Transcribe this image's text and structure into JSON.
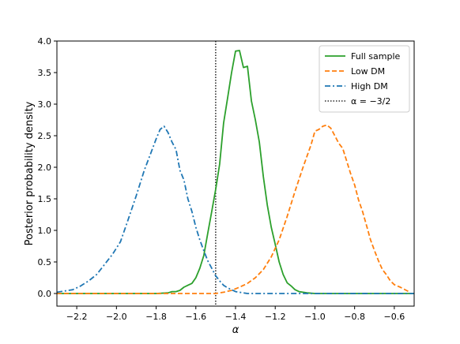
{
  "chart_data": {
    "type": "line",
    "title": "",
    "xlabel": "α",
    "ylabel": "Posterior probability density",
    "xlim": [
      -2.3,
      -0.5
    ],
    "ylim": [
      -0.2,
      4.0
    ],
    "xticks": [
      -2.2,
      -2.0,
      -1.8,
      -1.6,
      -1.4,
      -1.2,
      -1.0,
      -0.8,
      -0.6
    ],
    "xtick_labels": [
      "−2.2",
      "−2.0",
      "−1.8",
      "−1.6",
      "−1.4",
      "−1.2",
      "−1.0",
      "−0.8",
      "−0.6"
    ],
    "yticks": [
      0.0,
      0.5,
      1.0,
      1.5,
      2.0,
      2.5,
      3.0,
      3.5,
      4.0
    ],
    "ytick_labels": [
      "0.0",
      "0.5",
      "1.0",
      "1.5",
      "2.0",
      "2.5",
      "3.0",
      "3.5",
      "4.0"
    ],
    "grid": false,
    "legend_position": "top-right",
    "series": [
      {
        "name": "Full sample",
        "color": "#2ca02c",
        "style": "solid",
        "x": [
          -2.3,
          -1.8,
          -1.74,
          -1.72,
          -1.7,
          -1.68,
          -1.66,
          -1.64,
          -1.62,
          -1.6,
          -1.58,
          -1.56,
          -1.54,
          -1.52,
          -1.5,
          -1.48,
          -1.46,
          -1.44,
          -1.42,
          -1.4,
          -1.38,
          -1.36,
          -1.34,
          -1.32,
          -1.3,
          -1.28,
          -1.26,
          -1.24,
          -1.22,
          -1.2,
          -1.18,
          -1.16,
          -1.14,
          -1.12,
          -1.1,
          -1.08,
          -1.06,
          -1.04,
          -1.0,
          -0.5
        ],
        "y": [
          0.0,
          0.0,
          0.01,
          0.03,
          0.03,
          0.05,
          0.1,
          0.13,
          0.16,
          0.25,
          0.4,
          0.6,
          0.95,
          1.3,
          1.65,
          2.05,
          2.7,
          3.1,
          3.5,
          3.84,
          3.85,
          3.58,
          3.6,
          3.05,
          2.75,
          2.4,
          1.85,
          1.4,
          1.05,
          0.78,
          0.5,
          0.3,
          0.17,
          0.12,
          0.06,
          0.03,
          0.02,
          0.01,
          0.0,
          0.0
        ]
      },
      {
        "name": "Low DM",
        "color": "#ff7f0e",
        "style": "dashed",
        "x": [
          -2.3,
          -1.5,
          -1.46,
          -1.42,
          -1.38,
          -1.34,
          -1.3,
          -1.26,
          -1.22,
          -1.18,
          -1.14,
          -1.1,
          -1.06,
          -1.02,
          -1.0,
          -0.98,
          -0.96,
          -0.94,
          -0.92,
          -0.9,
          -0.88,
          -0.86,
          -0.84,
          -0.82,
          -0.8,
          -0.78,
          -0.76,
          -0.74,
          -0.72,
          -0.7,
          -0.68,
          -0.66,
          -0.64,
          -0.62,
          -0.6,
          -0.57,
          -0.54,
          -0.52
        ],
        "y": [
          0.0,
          0.0,
          0.02,
          0.05,
          0.1,
          0.16,
          0.25,
          0.38,
          0.58,
          0.85,
          1.22,
          1.62,
          2.0,
          2.35,
          2.57,
          2.6,
          2.65,
          2.67,
          2.62,
          2.5,
          2.38,
          2.3,
          2.1,
          1.9,
          1.72,
          1.48,
          1.3,
          1.08,
          0.85,
          0.68,
          0.52,
          0.38,
          0.3,
          0.2,
          0.14,
          0.1,
          0.05,
          0.02
        ]
      },
      {
        "name": "High DM",
        "color": "#1f77b4",
        "style": "dashdot",
        "x": [
          -2.3,
          -2.26,
          -2.22,
          -2.18,
          -2.14,
          -2.1,
          -2.06,
          -2.02,
          -1.98,
          -1.94,
          -1.9,
          -1.86,
          -1.82,
          -1.8,
          -1.78,
          -1.76,
          -1.74,
          -1.72,
          -1.7,
          -1.68,
          -1.66,
          -1.64,
          -1.62,
          -1.6,
          -1.58,
          -1.56,
          -1.54,
          -1.52,
          -1.5,
          -1.48,
          -1.46,
          -1.44,
          -1.42,
          -1.4,
          -1.38,
          -1.36,
          -1.34,
          -1.3,
          -1.2,
          -0.5
        ],
        "y": [
          0.02,
          0.04,
          0.06,
          0.12,
          0.2,
          0.3,
          0.46,
          0.62,
          0.82,
          1.18,
          1.55,
          1.95,
          2.28,
          2.45,
          2.6,
          2.65,
          2.55,
          2.4,
          2.28,
          1.95,
          1.8,
          1.5,
          1.3,
          1.05,
          0.85,
          0.68,
          0.52,
          0.4,
          0.28,
          0.2,
          0.13,
          0.09,
          0.06,
          0.03,
          0.02,
          0.01,
          0.0,
          0.0,
          0.0,
          0.0
        ]
      }
    ],
    "reference_line": {
      "name": "α = −3/2",
      "x": -1.5,
      "color": "#000000",
      "style": "dotted"
    }
  }
}
